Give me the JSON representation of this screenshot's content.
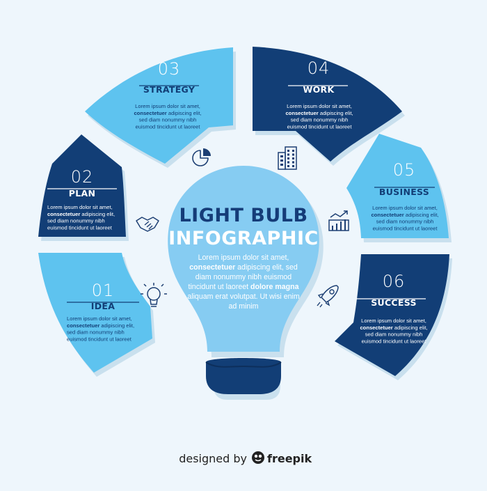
{
  "colors": {
    "background": "#eef6fc",
    "dark_blue": "#123e76",
    "light_blue": "#5ec3ef",
    "shadow": "#c9e0ee",
    "bulb": "#86ccf2",
    "bulb_base": "#123e76",
    "title_text": "#153c78",
    "white": "#ffffff"
  },
  "center": {
    "title_line1": "LIGHT BULB",
    "title_line2": "INFOGRAPHIC",
    "body_lines": [
      [
        {
          "t": "Lorem ipsum dolor sit amet,"
        }
      ],
      [
        {
          "t": "consectetuer",
          "b": true
        },
        {
          "t": " adipiscing elit, sed"
        }
      ],
      [
        {
          "t": "diam nonummy nibh euismod"
        }
      ],
      [
        {
          "t": "tincidunt ut laoreet "
        },
        {
          "t": "dolore magna",
          "b": true
        }
      ],
      [
        {
          "t": "aliquam erat volutpat. Ut wisi enim"
        }
      ],
      [
        {
          "t": "ad minim"
        }
      ]
    ]
  },
  "segments": [
    {
      "id": "idea",
      "number": "01",
      "title": "IDEA",
      "theme": "light",
      "icon": "lightbulb-icon",
      "body_lines": [
        [
          {
            "t": "Lorem ipsum dolor sit amet,"
          }
        ],
        [
          {
            "t": "consectetuer",
            "b": true
          },
          {
            "t": " adipiscing elit,"
          }
        ],
        [
          {
            "t": "sed diam nonummy nibh"
          }
        ],
        [
          {
            "t": "euismod tincidunt ut laoreet"
          }
        ]
      ]
    },
    {
      "id": "plan",
      "number": "02",
      "title": "PLAN",
      "theme": "dark",
      "icon": "handshake-icon",
      "body_lines": [
        [
          {
            "t": "Lorem ipsum dolor sit amet,"
          }
        ],
        [
          {
            "t": "consectetuer",
            "b": true
          },
          {
            "t": " adipiscing elit,"
          }
        ],
        [
          {
            "t": "sed diam nonummy nibh"
          }
        ],
        [
          {
            "t": "euismod tincidunt ut laoreet"
          }
        ]
      ]
    },
    {
      "id": "strategy",
      "number": "03",
      "title": "STRATEGY",
      "theme": "light",
      "icon": "pie-chart-icon",
      "body_lines": [
        [
          {
            "t": "Lorem ipsum dolor sit amet,"
          }
        ],
        [
          {
            "t": "consectetuer",
            "b": true
          },
          {
            "t": " adipiscing elit,"
          }
        ],
        [
          {
            "t": "sed diam nonummy nibh"
          }
        ],
        [
          {
            "t": "euismod tincidunt ut laoreet"
          }
        ]
      ]
    },
    {
      "id": "work",
      "number": "04",
      "title": "WORK",
      "theme": "dark",
      "icon": "office-building-icon",
      "body_lines": [
        [
          {
            "t": "Lorem ipsum dolor sit amet,"
          }
        ],
        [
          {
            "t": "consectetuer",
            "b": true
          },
          {
            "t": " adipiscing elit,"
          }
        ],
        [
          {
            "t": "sed diam nonummy nibh"
          }
        ],
        [
          {
            "t": "euismod tincidunt ut laoreet"
          }
        ]
      ]
    },
    {
      "id": "business",
      "number": "05",
      "title": "BUSINESS",
      "theme": "light",
      "icon": "growth-chart-icon",
      "body_lines": [
        [
          {
            "t": "Lorem ipsum dolor sit amet,"
          }
        ],
        [
          {
            "t": "consectetuer",
            "b": true
          },
          {
            "t": " adipiscing elit,"
          }
        ],
        [
          {
            "t": "sed diam nonummy nibh"
          }
        ],
        [
          {
            "t": "euismod tincidunt ut laoreet"
          }
        ]
      ]
    },
    {
      "id": "success",
      "number": "06",
      "title": "SUCCESS",
      "theme": "dark",
      "icon": "rocket-icon",
      "body_lines": [
        [
          {
            "t": "Lorem ipsum dolor sit amet,"
          }
        ],
        [
          {
            "t": "consectetuer",
            "b": true
          },
          {
            "t": " adipiscing elit,"
          }
        ],
        [
          {
            "t": "sed diam nonummy nibh"
          }
        ],
        [
          {
            "t": "euismod tincidunt ut laoreet"
          }
        ]
      ]
    }
  ],
  "footer": {
    "designed_by": "designed by",
    "brand": "freepik"
  }
}
